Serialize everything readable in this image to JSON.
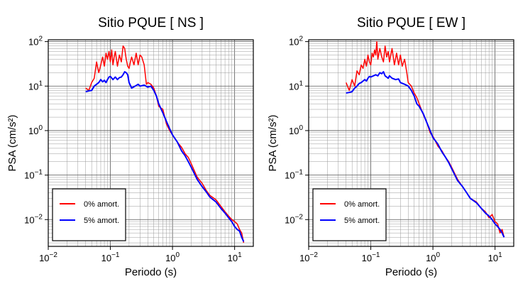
{
  "chart_data": [
    {
      "type": "line",
      "title": "Sitio PQUE [ NS ]",
      "xlabel": "Periodo (s)",
      "ylabel": "PSA (cm/s²)",
      "xscale": "log",
      "yscale": "log",
      "xlim": [
        0.01,
        20
      ],
      "ylim": [
        0.0025,
        110
      ],
      "grid": true,
      "legend_position": "bottom-left",
      "x_ticks": [
        {
          "value": 0.01,
          "b": "10",
          "e": "−2"
        },
        {
          "value": 0.1,
          "b": "10",
          "e": "−1"
        },
        {
          "value": 1,
          "b": "10",
          "e": "0"
        },
        {
          "value": 10,
          "b": "10",
          "e": "1"
        }
      ],
      "y_ticks": [
        {
          "value": 0.01,
          "b": "10",
          "e": "−2"
        },
        {
          "value": 0.1,
          "b": "10",
          "e": "−1"
        },
        {
          "value": 1,
          "b": "10",
          "e": "0"
        },
        {
          "value": 10,
          "b": "10",
          "e": "1"
        },
        {
          "value": 100,
          "b": "10",
          "e": "2"
        }
      ],
      "series": [
        {
          "name": "0% amort.",
          "color": "#ff0000",
          "x": [
            0.04,
            0.045,
            0.05,
            0.055,
            0.06,
            0.065,
            0.07,
            0.075,
            0.08,
            0.085,
            0.09,
            0.095,
            0.1,
            0.105,
            0.11,
            0.115,
            0.12,
            0.13,
            0.14,
            0.15,
            0.16,
            0.17,
            0.18,
            0.19,
            0.2,
            0.21,
            0.22,
            0.24,
            0.26,
            0.28,
            0.3,
            0.32,
            0.35,
            0.38,
            0.4,
            0.45,
            0.5,
            0.55,
            0.6,
            0.7,
            0.8,
            0.9,
            1.0,
            1.2,
            1.4,
            1.6,
            1.8,
            2.0,
            2.5,
            3.0,
            3.5,
            4.0,
            5.0,
            6.0,
            7.0,
            8.0,
            9.0,
            10.0,
            11.0,
            12.0,
            13.0,
            14.0
          ],
          "y": [
            9.0,
            8.0,
            12.0,
            15.0,
            35.0,
            20.0,
            30.0,
            45.0,
            28.0,
            55.0,
            40.0,
            60.0,
            35.0,
            65.0,
            30.0,
            45.0,
            60.0,
            28.0,
            50.0,
            35.0,
            80.0,
            70.0,
            40.0,
            28.0,
            25.0,
            35.0,
            45.0,
            30.0,
            55.0,
            30.0,
            50.0,
            45.0,
            30.0,
            11.0,
            12.0,
            11.0,
            9.0,
            6.0,
            3.5,
            3.0,
            1.4,
            1.0,
            0.8,
            0.55,
            0.42,
            0.3,
            0.25,
            0.18,
            0.09,
            0.065,
            0.045,
            0.035,
            0.028,
            0.02,
            0.015,
            0.012,
            0.01,
            0.009,
            0.008,
            0.006,
            0.005,
            0.003
          ]
        },
        {
          "name": "5% amort.",
          "color": "#0000ff",
          "x": [
            0.04,
            0.045,
            0.05,
            0.055,
            0.06,
            0.065,
            0.07,
            0.075,
            0.08,
            0.085,
            0.09,
            0.095,
            0.1,
            0.11,
            0.12,
            0.13,
            0.14,
            0.15,
            0.16,
            0.17,
            0.18,
            0.19,
            0.2,
            0.22,
            0.25,
            0.28,
            0.3,
            0.35,
            0.4,
            0.45,
            0.5,
            0.55,
            0.6,
            0.7,
            0.8,
            0.9,
            1.0,
            1.2,
            1.4,
            1.6,
            1.8,
            2.0,
            2.5,
            3.0,
            3.5,
            4.0,
            5.0,
            6.0,
            7.0,
            8.0,
            9.0,
            10.0,
            11.0,
            12.0,
            13.0,
            14.0
          ],
          "y": [
            7.5,
            7.8,
            8.0,
            10.0,
            11.0,
            12.0,
            14.0,
            12.5,
            13.5,
            12.0,
            14.0,
            16.0,
            16.5,
            14.0,
            16.0,
            14.0,
            15.5,
            16.0,
            18.0,
            21.0,
            20.0,
            18.0,
            12.0,
            9.0,
            10.0,
            11.0,
            10.0,
            10.5,
            9.5,
            10.0,
            8.0,
            6.0,
            4.0,
            2.5,
            1.6,
            1.1,
            0.8,
            0.55,
            0.35,
            0.27,
            0.2,
            0.15,
            0.08,
            0.055,
            0.042,
            0.032,
            0.025,
            0.018,
            0.014,
            0.011,
            0.009,
            0.007,
            0.006,
            0.0055,
            0.004,
            0.0032
          ]
        }
      ]
    },
    {
      "type": "line",
      "title": "Sitio PQUE [ EW ]",
      "xlabel": "Periodo (s)",
      "ylabel": "PSA (cm/s²)",
      "xscale": "log",
      "yscale": "log",
      "xlim": [
        0.01,
        20
      ],
      "ylim": [
        0.0025,
        110
      ],
      "grid": true,
      "legend_position": "bottom-left",
      "x_ticks": [
        {
          "value": 0.01,
          "b": "10",
          "e": "−2"
        },
        {
          "value": 0.1,
          "b": "10",
          "e": "−1"
        },
        {
          "value": 1,
          "b": "10",
          "e": "0"
        },
        {
          "value": 10,
          "b": "10",
          "e": "1"
        }
      ],
      "y_ticks": [
        {
          "value": 0.01,
          "b": "10",
          "e": "−2"
        },
        {
          "value": 0.1,
          "b": "10",
          "e": "−1"
        },
        {
          "value": 1,
          "b": "10",
          "e": "0"
        },
        {
          "value": 10,
          "b": "10",
          "e": "1"
        },
        {
          "value": 100,
          "b": "10",
          "e": "2"
        }
      ],
      "series": [
        {
          "name": "0% amort.",
          "color": "#ff0000",
          "x": [
            0.04,
            0.045,
            0.05,
            0.055,
            0.06,
            0.065,
            0.07,
            0.075,
            0.08,
            0.085,
            0.09,
            0.095,
            0.1,
            0.105,
            0.11,
            0.115,
            0.12,
            0.125,
            0.13,
            0.14,
            0.15,
            0.16,
            0.17,
            0.18,
            0.19,
            0.2,
            0.22,
            0.24,
            0.26,
            0.28,
            0.3,
            0.32,
            0.35,
            0.38,
            0.4,
            0.45,
            0.5,
            0.55,
            0.6,
            0.7,
            0.8,
            0.9,
            1.0,
            1.2,
            1.4,
            1.6,
            1.8,
            2.0,
            2.5,
            3.0,
            3.5,
            4.0,
            5.0,
            6.0,
            7.0,
            8.0,
            9.0,
            10.0,
            11.0,
            12.0,
            13.0,
            14.0
          ],
          "y": [
            12.0,
            8.0,
            14.0,
            10.0,
            22.0,
            18.0,
            30.0,
            25.0,
            40.0,
            28.0,
            50.0,
            35.0,
            30.0,
            55.0,
            45.0,
            65.0,
            50.0,
            100.0,
            40.0,
            70.0,
            45.0,
            35.0,
            80.0,
            45.0,
            60.0,
            35.0,
            70.0,
            30.0,
            55.0,
            30.0,
            50.0,
            28.0,
            40.0,
            20.0,
            12.0,
            10.0,
            7.0,
            5.5,
            4.0,
            2.3,
            1.5,
            0.9,
            0.75,
            0.45,
            0.35,
            0.25,
            0.2,
            0.15,
            0.08,
            0.055,
            0.04,
            0.03,
            0.025,
            0.018,
            0.015,
            0.011,
            0.013,
            0.009,
            0.008,
            0.005,
            0.006,
            0.004
          ]
        },
        {
          "name": "5% amort.",
          "color": "#0000ff",
          "x": [
            0.04,
            0.045,
            0.05,
            0.055,
            0.06,
            0.065,
            0.07,
            0.075,
            0.08,
            0.085,
            0.09,
            0.095,
            0.1,
            0.11,
            0.12,
            0.13,
            0.14,
            0.15,
            0.16,
            0.17,
            0.18,
            0.19,
            0.2,
            0.22,
            0.25,
            0.28,
            0.3,
            0.35,
            0.4,
            0.45,
            0.5,
            0.55,
            0.6,
            0.7,
            0.8,
            0.9,
            1.0,
            1.2,
            1.4,
            1.6,
            1.8,
            2.0,
            2.5,
            3.0,
            3.5,
            4.0,
            5.0,
            6.0,
            7.0,
            8.0,
            9.0,
            10.0,
            11.0,
            12.0,
            13.0,
            14.0
          ],
          "y": [
            7.0,
            7.2,
            7.5,
            9.0,
            10.0,
            11.5,
            12.0,
            13.0,
            14.0,
            13.0,
            15.0,
            16.5,
            16.0,
            17.0,
            18.0,
            17.0,
            20.0,
            19.0,
            21.0,
            17.0,
            16.0,
            15.0,
            17.0,
            15.0,
            14.0,
            14.5,
            12.0,
            11.0,
            10.0,
            8.0,
            6.0,
            4.0,
            3.5,
            2.4,
            1.5,
            1.0,
            0.7,
            0.5,
            0.33,
            0.25,
            0.19,
            0.14,
            0.075,
            0.055,
            0.04,
            0.03,
            0.024,
            0.018,
            0.014,
            0.012,
            0.01,
            0.008,
            0.007,
            0.006,
            0.005,
            0.004
          ]
        }
      ]
    }
  ]
}
